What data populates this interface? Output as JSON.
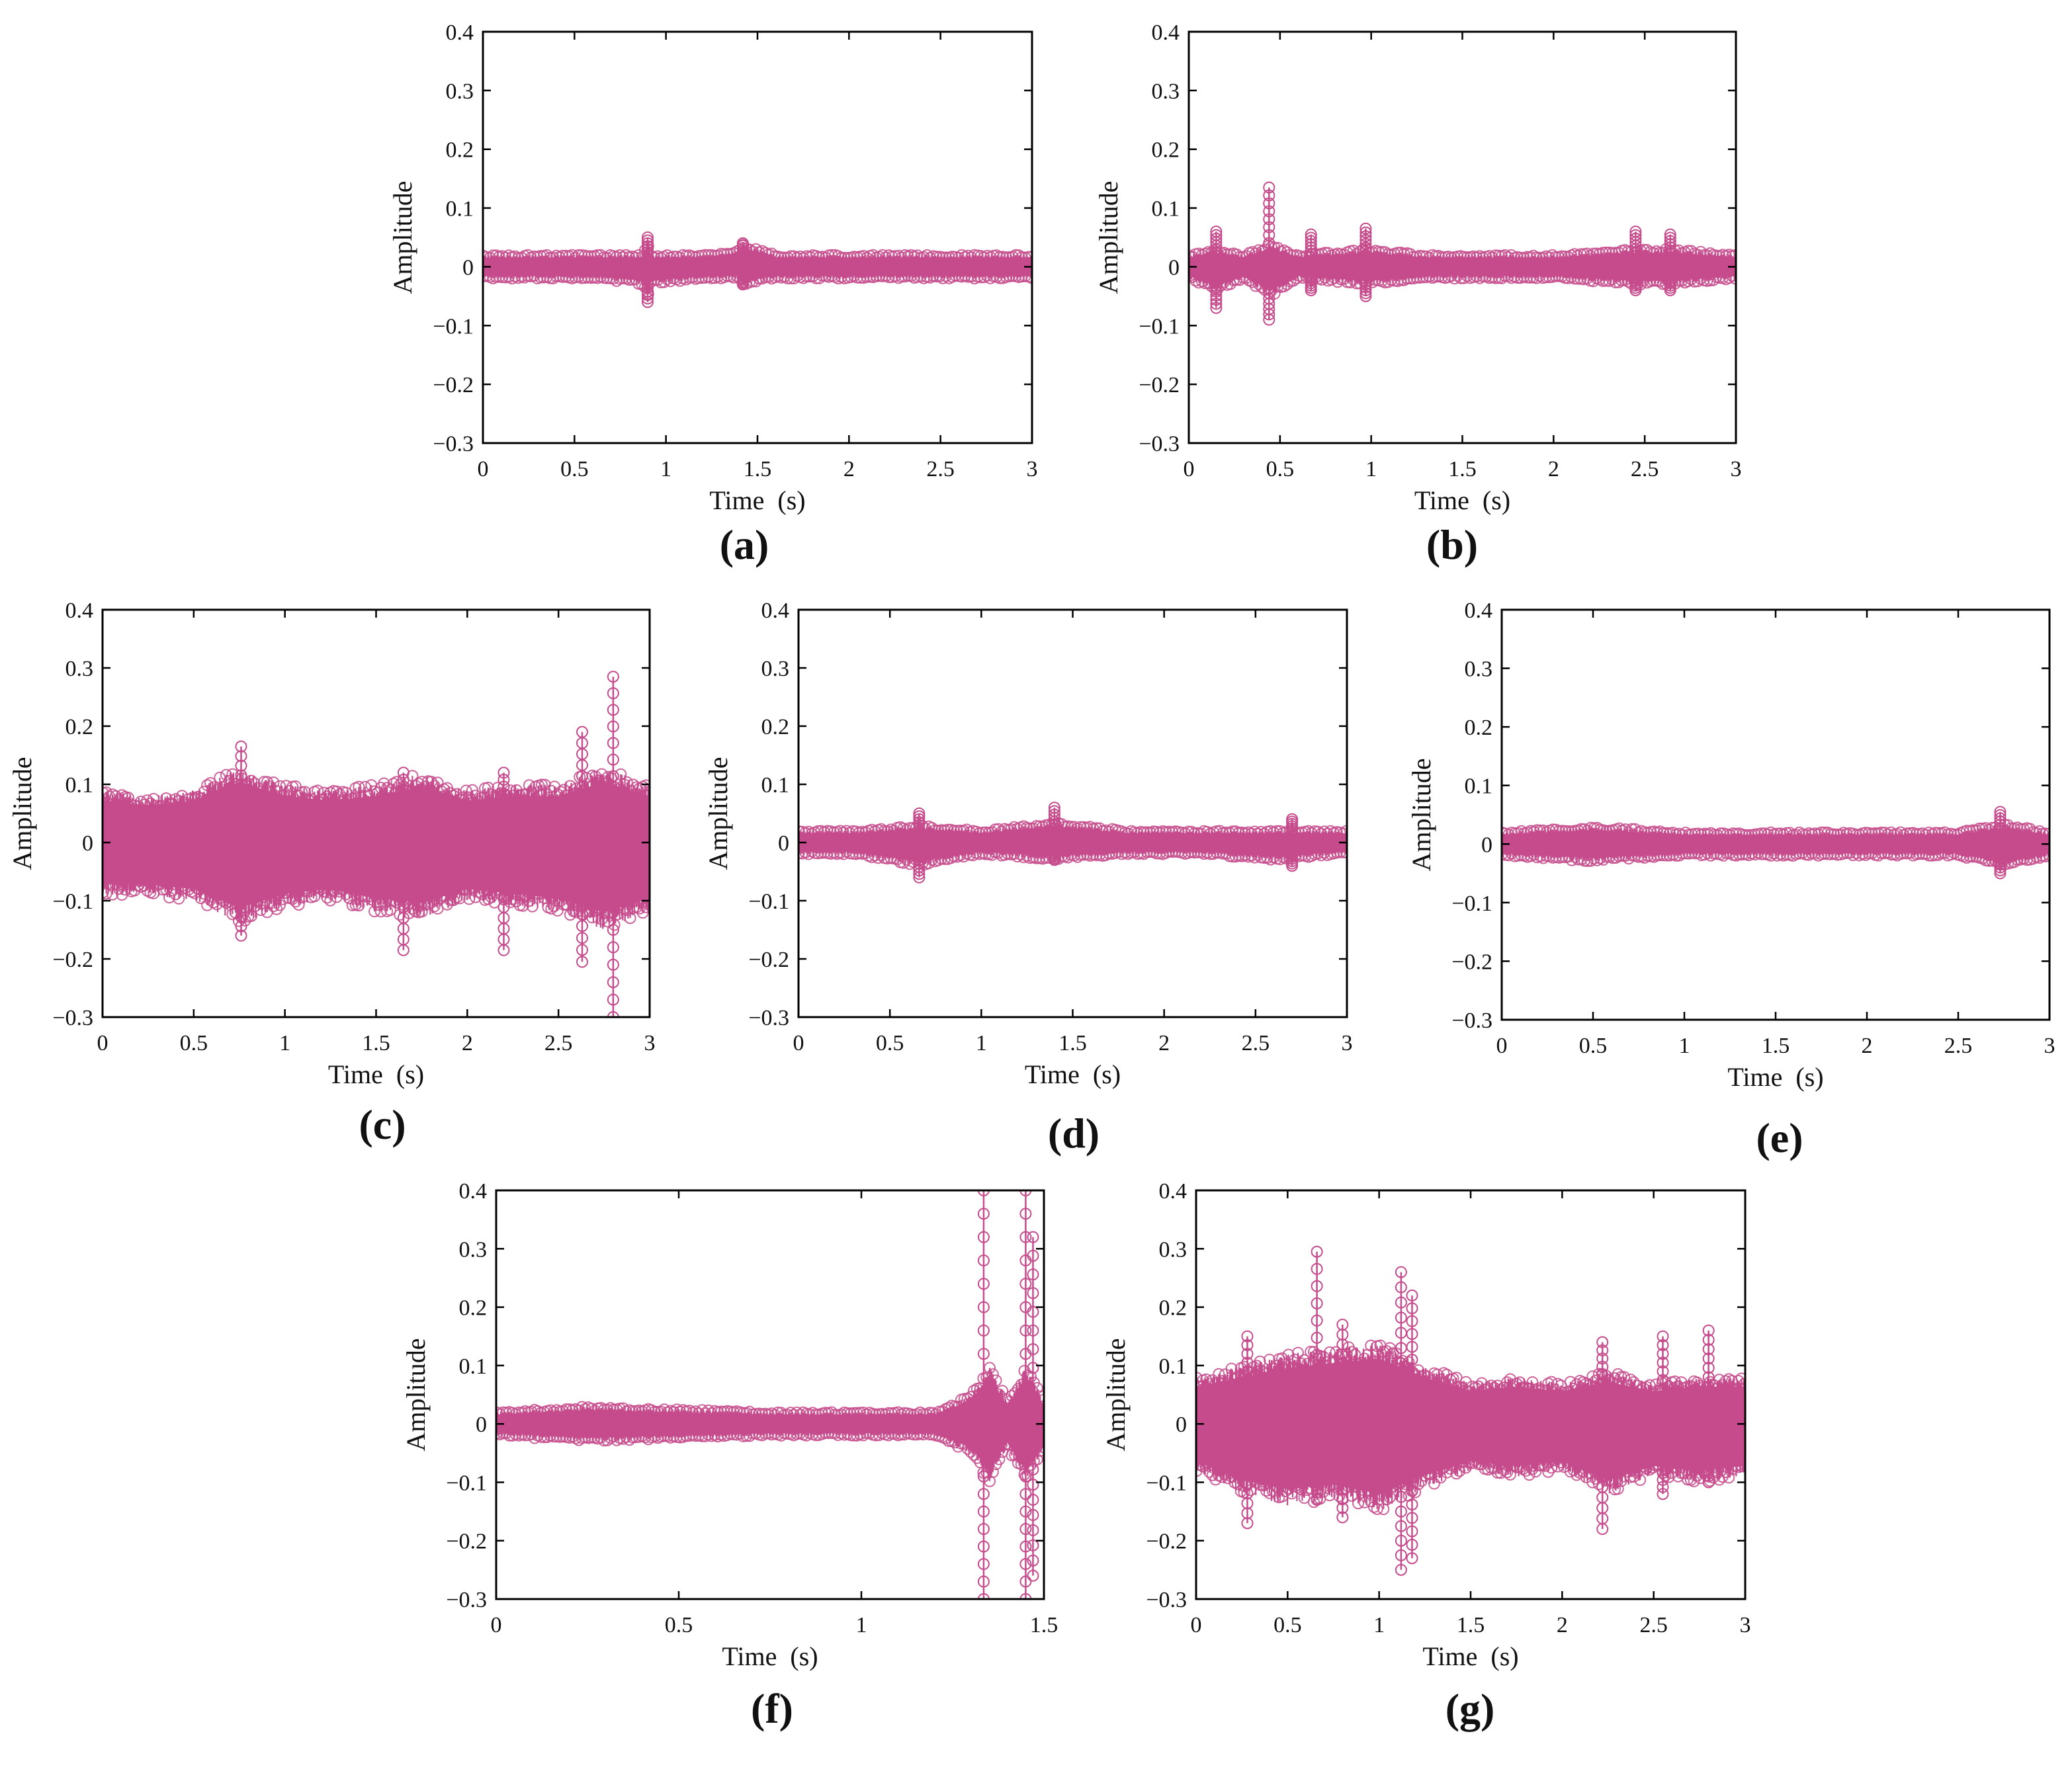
{
  "style": {
    "signal_color": "#c64b8c",
    "axis_color": "#000000"
  },
  "chart_data": [
    {
      "panel_label": "(a)",
      "type": "line",
      "xlabel": "Time  (s)",
      "ylabel": "Amplitude",
      "xlim": [
        0,
        3
      ],
      "ylim": [
        -0.3,
        0.4
      ],
      "xticks": [
        "0",
        "0.5",
        "1",
        "1.5",
        "2",
        "2.5",
        "3"
      ],
      "yticks": [
        "−0.3",
        "−0.2",
        "−0.1",
        "0",
        "0.1",
        "0.2",
        "0.3",
        "0.4"
      ],
      "series": [
        {
          "marker": "circle",
          "color": "#c64b8c",
          "envelope": {
            "x": [
              0,
              0.3,
              0.6,
              0.88,
              0.9,
              0.92,
              1.2,
              1.4,
              1.42,
              1.6,
              2.0,
              2.4,
              2.8,
              3.0
            ],
            "upper": [
              0.02,
              0.02,
              0.02,
              0.02,
              0.05,
              0.02,
              0.02,
              0.03,
              0.04,
              0.02,
              0.02,
              0.02,
              0.02,
              0.02
            ],
            "lower": [
              -0.02,
              -0.02,
              -0.02,
              -0.03,
              -0.06,
              -0.03,
              -0.02,
              -0.02,
              -0.03,
              -0.02,
              -0.02,
              -0.02,
              -0.02,
              -0.02
            ]
          },
          "spikes": [
            {
              "x": 0.9,
              "min": -0.06,
              "max": 0.05
            },
            {
              "x": 1.42,
              "min": -0.03,
              "max": 0.04
            }
          ]
        }
      ]
    },
    {
      "panel_label": "(b)",
      "type": "line",
      "xlabel": "Time  (s)",
      "ylabel": "Amplitude",
      "xlim": [
        0,
        3
      ],
      "ylim": [
        -0.3,
        0.4
      ],
      "xticks": [
        "0",
        "0.5",
        "1",
        "1.5",
        "2",
        "2.5",
        "3"
      ],
      "yticks": [
        "−0.3",
        "−0.2",
        "−0.1",
        "0",
        "0.1",
        "0.2",
        "0.3",
        "0.4"
      ],
      "series": [
        {
          "marker": "circle",
          "color": "#c64b8c",
          "envelope": {
            "x": [
              0,
              0.15,
              0.3,
              0.45,
              0.6,
              0.97,
              1.3,
              1.7,
              2.0,
              2.45,
              2.65,
              3.0
            ],
            "upper": [
              0.02,
              0.03,
              0.02,
              0.04,
              0.02,
              0.03,
              0.02,
              0.02,
              0.02,
              0.03,
              0.03,
              0.02
            ],
            "lower": [
              -0.02,
              -0.04,
              -0.02,
              -0.05,
              -0.02,
              -0.03,
              -0.02,
              -0.02,
              -0.02,
              -0.03,
              -0.03,
              -0.02
            ]
          },
          "spikes": [
            {
              "x": 0.15,
              "min": -0.07,
              "max": 0.06
            },
            {
              "x": 0.44,
              "min": -0.09,
              "max": 0.135
            },
            {
              "x": 0.67,
              "min": -0.04,
              "max": 0.055
            },
            {
              "x": 0.97,
              "min": -0.05,
              "max": 0.065
            },
            {
              "x": 2.45,
              "min": -0.04,
              "max": 0.06
            },
            {
              "x": 2.64,
              "min": -0.04,
              "max": 0.055
            }
          ]
        }
      ]
    },
    {
      "panel_label": "(c)",
      "type": "line",
      "xlabel": "Time  (s)",
      "ylabel": "Amplitude",
      "xlim": [
        0,
        3
      ],
      "ylim": [
        -0.3,
        0.4
      ],
      "xticks": [
        "0",
        "0.5",
        "1",
        "1.5",
        "2",
        "2.5",
        "3"
      ],
      "yticks": [
        "−0.3",
        "−0.2",
        "−0.1",
        "0",
        "0.1",
        "0.2",
        "0.3",
        "0.4"
      ],
      "series": [
        {
          "marker": "circle",
          "color": "#c64b8c",
          "envelope": {
            "x": [
              0,
              0.25,
              0.5,
              0.75,
              1.0,
              1.25,
              1.5,
              1.75,
              2.0,
              2.25,
              2.5,
              2.75,
              3.0
            ],
            "upper": [
              0.09,
              0.08,
              0.09,
              0.13,
              0.1,
              0.09,
              0.1,
              0.12,
              0.09,
              0.1,
              0.1,
              0.13,
              0.1
            ],
            "lower": [
              -0.09,
              -0.09,
              -0.1,
              -0.14,
              -0.11,
              -0.1,
              -0.12,
              -0.13,
              -0.1,
              -0.11,
              -0.12,
              -0.15,
              -0.12
            ]
          },
          "spikes": [
            {
              "x": 0.76,
              "min": -0.16,
              "max": 0.165
            },
            {
              "x": 1.65,
              "min": -0.185,
              "max": 0.12
            },
            {
              "x": 2.2,
              "min": -0.185,
              "max": 0.12
            },
            {
              "x": 2.63,
              "min": -0.205,
              "max": 0.19
            },
            {
              "x": 2.8,
              "min": -0.3,
              "max": 0.285
            }
          ]
        }
      ]
    },
    {
      "panel_label": "(d)",
      "type": "line",
      "xlabel": "Time  (s)",
      "ylabel": "Amplitude",
      "xlim": [
        0,
        3
      ],
      "ylim": [
        -0.3,
        0.4
      ],
      "xticks": [
        "0",
        "0.5",
        "1",
        "1.5",
        "2",
        "2.5",
        "3"
      ],
      "yticks": [
        "−0.3",
        "−0.2",
        "−0.1",
        "0",
        "0.1",
        "0.2",
        "0.3",
        "0.4"
      ],
      "series": [
        {
          "marker": "circle",
          "color": "#c64b8c",
          "envelope": {
            "x": [
              0,
              0.3,
              0.66,
              1.0,
              1.4,
              1.8,
              2.2,
              2.6,
              3.0
            ],
            "upper": [
              0.02,
              0.02,
              0.03,
              0.02,
              0.035,
              0.02,
              0.02,
              0.02,
              0.02
            ],
            "lower": [
              -0.02,
              -0.02,
              -0.04,
              -0.02,
              -0.03,
              -0.02,
              -0.02,
              -0.03,
              -0.02
            ]
          },
          "spikes": [
            {
              "x": 0.66,
              "min": -0.06,
              "max": 0.05
            },
            {
              "x": 1.4,
              "min": -0.03,
              "max": 0.06
            },
            {
              "x": 2.7,
              "min": -0.04,
              "max": 0.04
            }
          ]
        }
      ]
    },
    {
      "panel_label": "(e)",
      "type": "line",
      "xlabel": "Time  (s)",
      "ylabel": "Amplitude",
      "xlim": [
        0,
        3
      ],
      "ylim": [
        -0.3,
        0.4
      ],
      "xticks": [
        "0",
        "0.5",
        "1",
        "1.5",
        "2",
        "2.5",
        "3"
      ],
      "yticks": [
        "−0.3",
        "−0.2",
        "−0.1",
        "0",
        "0.1",
        "0.2",
        "0.3",
        "0.4"
      ],
      "series": [
        {
          "marker": "circle",
          "color": "#c64b8c",
          "envelope": {
            "x": [
              0,
              0.5,
              1.0,
              1.5,
              2.0,
              2.5,
              2.75,
              3.0
            ],
            "upper": [
              0.02,
              0.03,
              0.02,
              0.02,
              0.02,
              0.02,
              0.035,
              0.02
            ],
            "lower": [
              -0.02,
              -0.03,
              -0.02,
              -0.02,
              -0.02,
              -0.02,
              -0.04,
              -0.02
            ]
          },
          "spikes": [
            {
              "x": 2.73,
              "min": -0.05,
              "max": 0.055
            }
          ]
        }
      ]
    },
    {
      "panel_label": "(f)",
      "type": "line",
      "xlabel": "Time  (s)",
      "ylabel": "Amplitude",
      "xlim": [
        0,
        1.5
      ],
      "ylim": [
        -0.3,
        0.4
      ],
      "xticks": [
        "0",
        "0.5",
        "1",
        "1.5"
      ],
      "yticks": [
        "−0.3",
        "−0.2",
        "−0.1",
        "0",
        "0.1",
        "0.2",
        "0.3",
        "0.4"
      ],
      "series": [
        {
          "marker": "circle",
          "color": "#c64b8c",
          "envelope": {
            "x": [
              0,
              0.25,
              0.5,
              0.75,
              1.0,
              1.2,
              1.3,
              1.35,
              1.4,
              1.45,
              1.5
            ],
            "upper": [
              0.02,
              0.03,
              0.025,
              0.02,
              0.02,
              0.02,
              0.05,
              0.1,
              0.04,
              0.1,
              0.04
            ],
            "lower": [
              -0.02,
              -0.03,
              -0.025,
              -0.02,
              -0.02,
              -0.02,
              -0.05,
              -0.1,
              -0.04,
              -0.1,
              -0.04
            ]
          },
          "spikes": [
            {
              "x": 1.335,
              "min": -0.3,
              "max": 0.4
            },
            {
              "x": 1.45,
              "min": -0.3,
              "max": 0.4
            },
            {
              "x": 1.47,
              "min": -0.26,
              "max": 0.32
            }
          ]
        }
      ]
    },
    {
      "panel_label": "(g)",
      "type": "line",
      "xlabel": "Time  (s)",
      "ylabel": "Amplitude",
      "xlim": [
        0,
        3
      ],
      "ylim": [
        -0.3,
        0.4
      ],
      "xticks": [
        "0",
        "0.5",
        "1",
        "1.5",
        "2",
        "2.5",
        "3"
      ],
      "yticks": [
        "−0.3",
        "−0.2",
        "−0.1",
        "0",
        "0.1",
        "0.2",
        "0.3",
        "0.4"
      ],
      "series": [
        {
          "marker": "circle",
          "color": "#c64b8c",
          "envelope": {
            "x": [
              0,
              0.25,
              0.5,
              0.75,
              1.0,
              1.25,
              1.5,
              1.75,
              2.0,
              2.25,
              2.5,
              2.75,
              3.0
            ],
            "upper": [
              0.08,
              0.1,
              0.12,
              0.13,
              0.14,
              0.1,
              0.07,
              0.08,
              0.07,
              0.09,
              0.07,
              0.08,
              0.08
            ],
            "lower": [
              -0.08,
              -0.12,
              -0.14,
              -0.13,
              -0.15,
              -0.11,
              -0.08,
              -0.09,
              -0.08,
              -0.12,
              -0.09,
              -0.1,
              -0.09
            ]
          },
          "spikes": [
            {
              "x": 0.28,
              "min": -0.17,
              "max": 0.15
            },
            {
              "x": 0.66,
              "min": -0.13,
              "max": 0.295
            },
            {
              "x": 0.8,
              "min": -0.16,
              "max": 0.17
            },
            {
              "x": 1.12,
              "min": -0.25,
              "max": 0.26
            },
            {
              "x": 1.18,
              "min": -0.23,
              "max": 0.22
            },
            {
              "x": 2.22,
              "min": -0.18,
              "max": 0.14
            },
            {
              "x": 2.55,
              "min": -0.12,
              "max": 0.15
            },
            {
              "x": 2.8,
              "min": -0.1,
              "max": 0.16
            }
          ]
        }
      ]
    }
  ]
}
